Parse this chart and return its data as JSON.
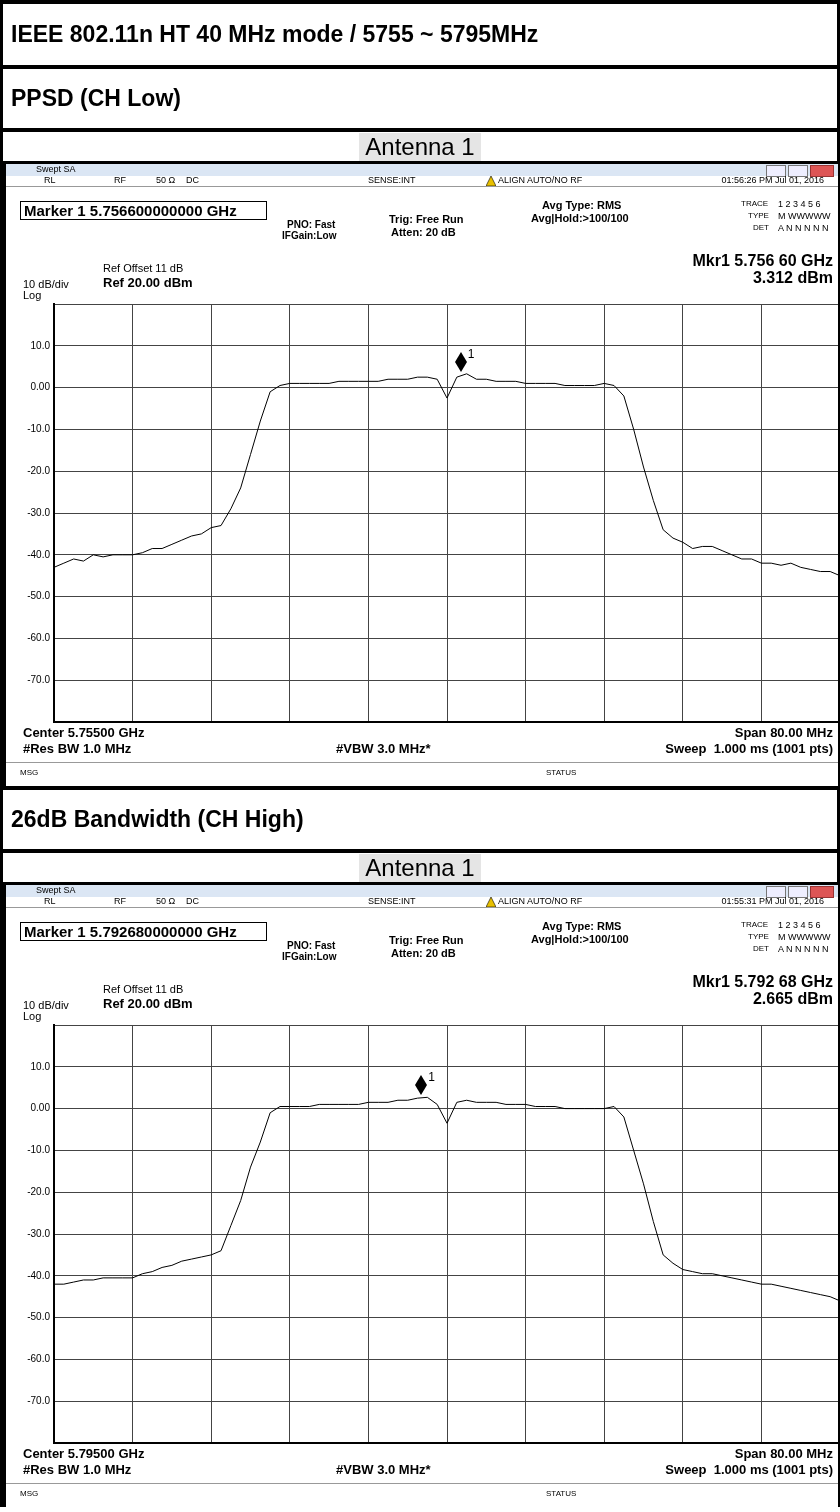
{
  "chart_data": [
    {
      "type": "line",
      "title": "IEEE 802.11n HT 40 MHz mode / 5755 ~ 5795MHz",
      "subtitle": "PPSD (CH Low)",
      "annotations": [
        "Antenna 1",
        "Swept SA",
        "RL",
        "RF",
        "50 Ω",
        "DC",
        "SENSE:INT",
        "ALIGN AUTO/NO RF",
        "01:56:26 PM Jul 01, 2016",
        "Marker 1 5.756600000000 GHz",
        "PNO: Fast",
        "IFGain:Low",
        "Trig: Free Run",
        "Atten: 20 dB",
        "Avg Type: RMS",
        "Avg|Hold:>100/100",
        "TRACE",
        "1 2 3 4 5 6",
        "TYPE",
        "M WWWWW",
        "DET",
        "A N N N N N",
        "Ref Offset 11 dB",
        "Ref 20.00 dBm",
        "10 dB/div",
        "Log",
        "Mkr1 5.756 60 GHz",
        "3.312 dBm",
        "Center 5.75500 GHz",
        "#Res BW 1.0 MHz",
        "#VBW 3.0 MHz*",
        "Span 80.00 MHz",
        "Sweep  1.000 ms (1001 pts)",
        "MSG",
        "STATUS",
        "1"
      ],
      "categories": [
        null,
        null,
        null,
        null,
        null,
        null,
        null,
        null,
        null,
        null,
        null,
        null,
        null,
        null,
        null,
        null,
        null,
        null,
        null,
        null,
        null,
        null,
        null,
        null,
        null,
        null,
        null,
        null,
        null,
        null,
        null,
        null,
        null,
        null,
        null,
        null,
        null,
        null,
        null,
        null,
        null,
        null,
        null,
        null,
        null,
        null,
        null,
        null,
        null,
        null,
        null,
        null,
        null,
        null,
        null,
        null,
        null,
        null,
        null,
        null,
        null,
        null,
        null,
        null,
        null,
        null,
        null,
        null,
        null,
        null,
        null,
        null,
        null,
        null,
        null,
        null,
        null,
        null,
        null,
        null,
        null
      ],
      "series": [
        {
          "color": "#000000",
          "values": [
            -43,
            -42,
            -41,
            -41.5,
            -40,
            -40.5,
            -40,
            -40,
            -40,
            -39.5,
            -38.5,
            -38.5,
            -37.5,
            -36.5,
            -35.5,
            -35,
            -33.5,
            -33,
            -29,
            -24,
            -16,
            -8,
            -1,
            0.5,
            1,
            1,
            1,
            1,
            1,
            1.5,
            1.5,
            1.5,
            1.5,
            1.5,
            2,
            2,
            2,
            2.5,
            2.5,
            2,
            -2.5,
            2.5,
            3.3,
            2,
            2,
            1.5,
            1.5,
            1.5,
            1,
            1,
            1,
            1,
            0.5,
            0.5,
            0.5,
            0.5,
            1,
            0.5,
            -2,
            -10,
            -19,
            -27,
            -34,
            -36,
            -37,
            -38.5,
            -38,
            -38,
            -39,
            -40,
            -41,
            -41,
            -42,
            -42,
            -42.5,
            -42,
            -43,
            -43.5,
            -44,
            -44,
            -45
          ]
        }
      ],
      "ylim": [
        -80,
        20
      ],
      "yticks": [
        {
          "value": 20,
          "label": null
        },
        {
          "value": 10,
          "label": "10.0"
        },
        {
          "value": 0,
          "label": "0.00"
        },
        {
          "value": -10,
          "label": "-10.0"
        },
        {
          "value": -20,
          "label": "-20.0"
        },
        {
          "value": -30,
          "label": "-30.0"
        },
        {
          "value": -40,
          "label": "-40.0"
        },
        {
          "value": -50,
          "label": "-50.0"
        },
        {
          "value": -60,
          "label": "-60.0"
        },
        {
          "value": -70,
          "label": "-70.0"
        },
        {
          "value": -80,
          "label": null
        }
      ],
      "tick_labels": "y",
      "grid": true
    },
    {
      "type": "line",
      "title": "26dB Bandwidth (CH High)",
      "annotations": [
        "Antenna 1",
        "Swept SA",
        "RL",
        "RF",
        "50 Ω",
        "DC",
        "SENSE:INT",
        "ALIGN AUTO/NO RF",
        "01:55:31 PM Jul 01, 2016",
        "Marker 1 5.792680000000 GHz",
        "PNO: Fast",
        "IFGain:Low",
        "Trig: Free Run",
        "Atten: 20 dB",
        "Avg Type: RMS",
        "Avg|Hold:>100/100",
        "TRACE",
        "1 2 3 4 5 6",
        "TYPE",
        "M WWWWW",
        "DET",
        "A N N N N N",
        "Ref Offset 11 dB",
        "Ref 20.00 dBm",
        "10 dB/div",
        "Log",
        "Mkr1 5.792 68 GHz",
        "2.665 dBm",
        "Center 5.79500 GHz",
        "#Res BW 1.0 MHz",
        "#VBW 3.0 MHz*",
        "Span 80.00 MHz",
        "Sweep  1.000 ms (1001 pts)",
        "MSG",
        "STATUS",
        "1"
      ],
      "categories": [
        null,
        null,
        null,
        null,
        null,
        null,
        null,
        null,
        null,
        null,
        null,
        null,
        null,
        null,
        null,
        null,
        null,
        null,
        null,
        null,
        null,
        null,
        null,
        null,
        null,
        null,
        null,
        null,
        null,
        null,
        null,
        null,
        null,
        null,
        null,
        null,
        null,
        null,
        null,
        null,
        null,
        null,
        null,
        null,
        null,
        null,
        null,
        null,
        null,
        null,
        null,
        null,
        null,
        null,
        null,
        null,
        null,
        null,
        null,
        null,
        null,
        null,
        null,
        null,
        null,
        null,
        null,
        null,
        null,
        null,
        null,
        null,
        null,
        null,
        null,
        null,
        null,
        null,
        null,
        null,
        null
      ],
      "series": [
        {
          "color": "#000000",
          "values": [
            -42,
            -42,
            -41.5,
            -41,
            -41,
            -40.5,
            -40.5,
            -40.5,
            -40.5,
            -39.5,
            -39,
            -38,
            -37.5,
            -36.5,
            -36,
            -35.5,
            -35,
            -34,
            -28,
            -22,
            -14,
            -8,
            -1,
            0.5,
            0.5,
            0.5,
            0.5,
            1,
            1,
            1,
            1,
            1,
            1.5,
            1.5,
            1.5,
            2,
            2,
            2.5,
            2.7,
            1,
            -3.5,
            1.5,
            2,
            1.5,
            1.5,
            1.5,
            1,
            1,
            1,
            0.5,
            0.5,
            0.5,
            0,
            0,
            0,
            0,
            0,
            0.5,
            -2,
            -10,
            -18,
            -27,
            -35,
            -37,
            -38.5,
            -39,
            -39.5,
            -39.5,
            -40,
            -40.5,
            -41,
            -41.5,
            -42,
            -42,
            -42.5,
            -43,
            -43.5,
            -44,
            -44.5,
            -45,
            -46
          ]
        }
      ],
      "ylim": [
        -80,
        20
      ],
      "yticks": [
        {
          "value": 20,
          "label": null
        },
        {
          "value": 10,
          "label": "10.0"
        },
        {
          "value": 0,
          "label": "0.00"
        },
        {
          "value": -10,
          "label": "-10.0"
        },
        {
          "value": -20,
          "label": "-20.0"
        },
        {
          "value": -30,
          "label": "-30.0"
        },
        {
          "value": -40,
          "label": "-40.0"
        },
        {
          "value": -50,
          "label": "-50.0"
        },
        {
          "value": -60,
          "label": "-60.0"
        },
        {
          "value": -70,
          "label": "-70.0"
        },
        {
          "value": -80,
          "label": null
        }
      ],
      "tick_labels": "y",
      "grid": true
    }
  ]
}
